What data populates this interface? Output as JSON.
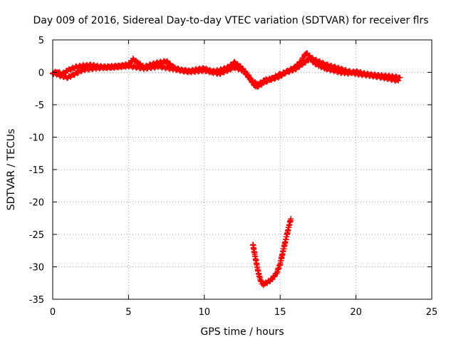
{
  "chart_data": {
    "type": "scatter",
    "title": "Day 009 of 2016, Sidereal Day-to-day VTEC variation (SDTVAR) for receiver flrs",
    "xlabel": "GPS time / hours",
    "ylabel": "SDTVAR / TECUs",
    "xlim": [
      0,
      25
    ],
    "ylim": [
      -35,
      5
    ],
    "x_ticks": [
      0,
      5,
      10,
      15,
      20,
      25
    ],
    "y_ticks": [
      5,
      0,
      -5,
      -10,
      -15,
      -20,
      -25,
      -30,
      -35
    ],
    "grid": true,
    "marker": "plus",
    "color": "#ff0000",
    "series": [
      {
        "x": [
          0.0,
          0.3,
          0.6,
          1.0,
          1.5,
          2.0,
          2.5,
          3.0,
          3.5,
          4.0,
          4.5,
          5.0,
          5.3,
          5.6,
          6.0,
          6.5,
          7.0,
          7.5,
          8.0,
          8.5,
          9.0,
          9.5,
          10.0,
          10.5,
          11.0,
          11.5,
          12.0,
          12.4,
          12.8,
          13.2,
          13.6,
          14.0,
          14.5,
          15.0,
          15.5,
          16.0,
          16.4,
          16.7,
          16.9,
          17.2,
          17.6,
          18.0,
          18.5,
          19.0,
          19.5,
          20.0,
          20.5,
          21.0,
          21.5,
          22.0,
          22.5,
          22.9
        ],
        "y": [
          -0.2,
          0.1,
          -0.3,
          0.3,
          0.8,
          1.0,
          1.1,
          0.9,
          0.8,
          0.9,
          1.0,
          1.2,
          2.0,
          1.5,
          0.8,
          1.2,
          1.5,
          1.7,
          0.7,
          0.3,
          0.2,
          0.4,
          0.6,
          0.1,
          0.3,
          0.7,
          1.5,
          0.8,
          -0.2,
          -1.5,
          -1.8,
          -1.2,
          -1.0,
          -0.6,
          0.2,
          0.8,
          1.8,
          3.0,
          2.6,
          1.5,
          1.0,
          0.6,
          0.3,
          0.0,
          -0.1,
          0.1,
          -0.2,
          -0.4,
          -0.5,
          -0.6,
          -0.7,
          -0.8
        ]
      },
      {
        "x": [
          0.0,
          0.5,
          1.0,
          1.5,
          2.0,
          3.0,
          4.0,
          5.0,
          6.0,
          7.0,
          8.0,
          9.0,
          10.0,
          11.0,
          12.0,
          12.6,
          13.0,
          13.4,
          14.0,
          15.0,
          16.0,
          17.0,
          18.0,
          19.0,
          20.0,
          21.0,
          22.0,
          22.8
        ],
        "y": [
          0.0,
          -0.5,
          -0.8,
          -0.2,
          0.4,
          0.7,
          0.8,
          1.0,
          0.6,
          0.9,
          0.5,
          0.1,
          0.3,
          -0.2,
          0.8,
          0.2,
          -1.0,
          -2.3,
          -1.5,
          -0.3,
          0.5,
          2.2,
          1.2,
          0.5,
          -0.2,
          -0.5,
          -0.9,
          -1.3
        ]
      },
      {
        "x": [
          13.2,
          13.3,
          13.4,
          13.5,
          13.6,
          13.7,
          13.8,
          13.9,
          14.0,
          14.2,
          14.4,
          14.6,
          14.8,
          15.0,
          15.1,
          15.2,
          15.3,
          15.4,
          15.5,
          15.6,
          15.7
        ],
        "y": [
          -26.5,
          -27.8,
          -29.0,
          -30.2,
          -31.2,
          -32.0,
          -32.5,
          -32.7,
          -32.6,
          -32.3,
          -32.0,
          -31.5,
          -30.8,
          -29.5,
          -28.5,
          -27.5,
          -26.5,
          -25.5,
          -24.5,
          -23.5,
          -22.6
        ]
      }
    ]
  }
}
